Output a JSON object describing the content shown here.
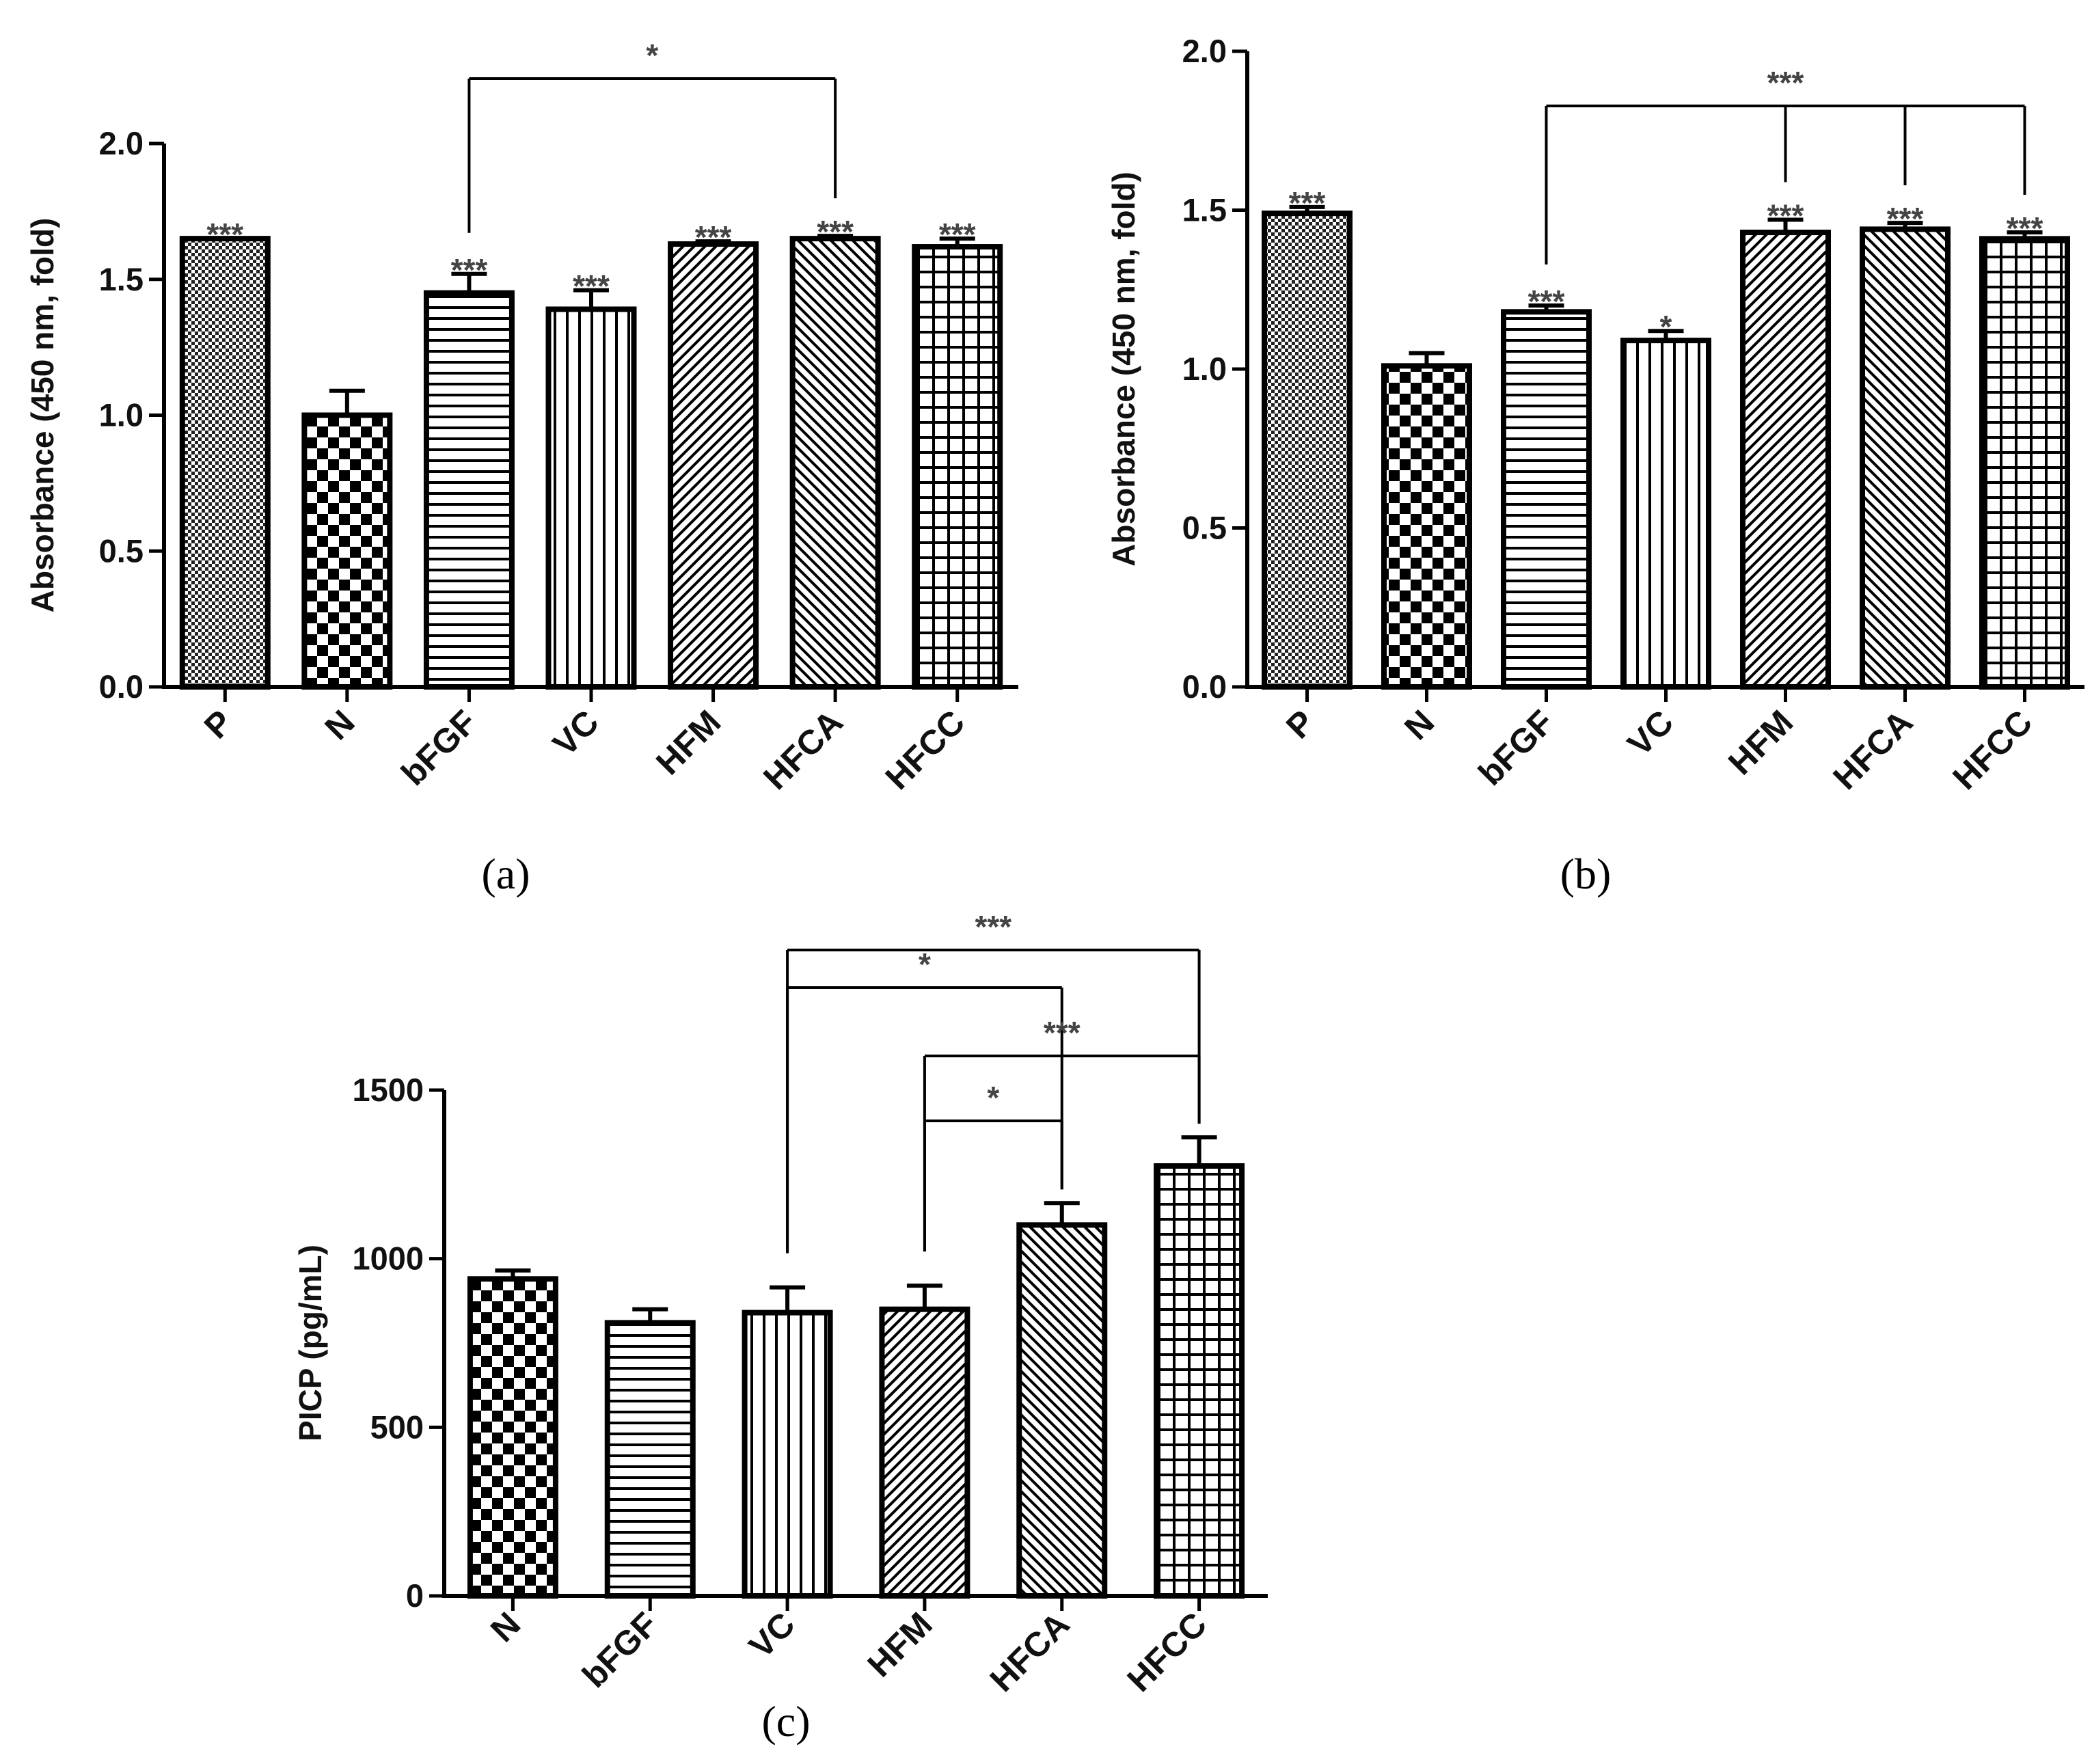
{
  "chart_data": [
    {
      "type": "bar",
      "panel": "(a)",
      "ylabel": "Absorbance (450 nm, fold)",
      "ylim": [
        0,
        2.0
      ],
      "yticks": [
        "0.0",
        "0.5",
        "1.0",
        "1.5",
        "2.0"
      ],
      "categories": [
        "P",
        "N",
        "bFGF",
        "VC",
        "HFM",
        "HFCA",
        "HFCC"
      ],
      "patterns": [
        "pat-dense",
        "pat-check",
        "pat-hlines",
        "pat-vlines",
        "pat-diag",
        "pat-diag-back",
        "pat-grid"
      ],
      "values": [
        1.65,
        1.0,
        1.45,
        1.39,
        1.63,
        1.65,
        1.62
      ],
      "errors": [
        0.0,
        0.09,
        0.07,
        0.07,
        0.01,
        0.01,
        0.03
      ],
      "significance": [
        "***",
        "",
        "***",
        "***",
        "***",
        "***",
        "***"
      ],
      "brackets": [
        {
          "from": "bFGF",
          "to": [
            "HFCA"
          ],
          "label": "*"
        }
      ]
    },
    {
      "type": "bar",
      "panel": "(b)",
      "ylabel": "Absorbance (450 nm, fold)",
      "ylim": [
        0,
        2.0
      ],
      "yticks": [
        "0.0",
        "0.5",
        "1.0",
        "1.5",
        "2.0"
      ],
      "categories": [
        "P",
        "N",
        "bFGF",
        "VC",
        "HFM",
        "HFCA",
        "HFCC"
      ],
      "patterns": [
        "pat-dense",
        "pat-check",
        "pat-hlines",
        "pat-vlines",
        "pat-diag",
        "pat-diag-back",
        "pat-grid"
      ],
      "values": [
        1.49,
        1.01,
        1.18,
        1.09,
        1.43,
        1.44,
        1.41
      ],
      "errors": [
        0.02,
        0.04,
        0.02,
        0.03,
        0.04,
        0.02,
        0.02
      ],
      "significance": [
        "***",
        "",
        "***",
        "*",
        "***",
        "***",
        "***"
      ],
      "brackets": [
        {
          "from": "bFGF",
          "to": [
            "HFM",
            "HFCA",
            "HFCC"
          ],
          "label": "***"
        }
      ]
    },
    {
      "type": "bar",
      "panel": "(c)",
      "ylabel": "PICP (pg/mL)",
      "ylim": [
        0,
        1500
      ],
      "yticks": [
        "0",
        "500",
        "1000",
        "1500"
      ],
      "categories": [
        "N",
        "bFGF",
        "VC",
        "HFM",
        "HFCA",
        "HFCC"
      ],
      "patterns": [
        "pat-check",
        "pat-hlines",
        "pat-vlines",
        "pat-diag",
        "pat-diag-back",
        "pat-grid"
      ],
      "values": [
        940,
        810,
        840,
        850,
        1100,
        1275
      ],
      "errors": [
        25,
        40,
        75,
        70,
        65,
        85
      ],
      "significance": [
        "",
        "",
        "",
        "",
        "",
        ""
      ],
      "brackets": [
        {
          "from": "VC",
          "to": [
            "HFCC"
          ],
          "label": "***"
        },
        {
          "from": "VC",
          "to": [
            "HFCA"
          ],
          "label": "*"
        },
        {
          "from": "HFM",
          "to": [
            "HFCC"
          ],
          "label": "***"
        },
        {
          "from": "HFM",
          "to": [
            "HFCA"
          ],
          "label": "*"
        }
      ]
    }
  ]
}
